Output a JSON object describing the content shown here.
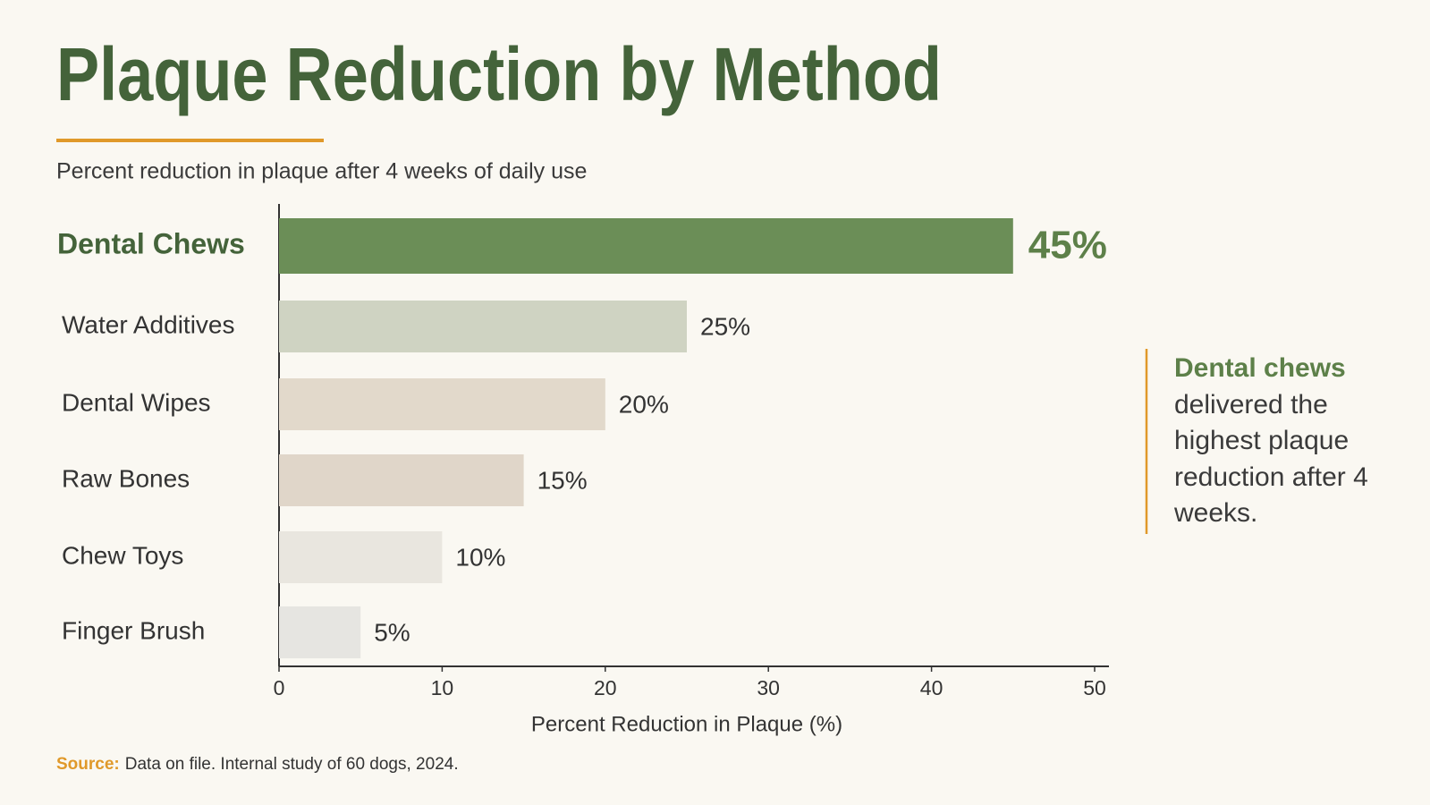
{
  "chart_data": {
    "type": "bar",
    "orientation": "horizontal",
    "title": "Plaque Reduction by Method",
    "subtitle": "Percent reduction in plaque after 4 weeks of daily use",
    "categories": [
      "Dental Chews",
      "Water Additives",
      "Dental Wipes",
      "Raw Bones",
      "Chew Toys",
      "Finger Brush"
    ],
    "values": [
      45,
      25,
      20,
      15,
      10,
      5
    ],
    "value_labels": [
      "45%",
      "25%",
      "20%",
      "15%",
      "10%",
      "5%"
    ],
    "colors": [
      "#6b8e57",
      "#cfd3c2",
      "#e2d9cb",
      "#e0d6c9",
      "#e9e6df",
      "#e6e5e1"
    ],
    "xlim": [
      0,
      50
    ],
    "xticks": [
      0,
      10,
      20,
      30,
      40,
      50
    ],
    "x_label": "Percent Reduction in Plaque (%)",
    "annotation": {
      "highlight": "Dental chews",
      "text": "delivered the highest plaque reduction after 4 weeks."
    },
    "source": {
      "label": "Source:",
      "text": "Data on file. Internal study of 60 dogs, 2024."
    }
  }
}
